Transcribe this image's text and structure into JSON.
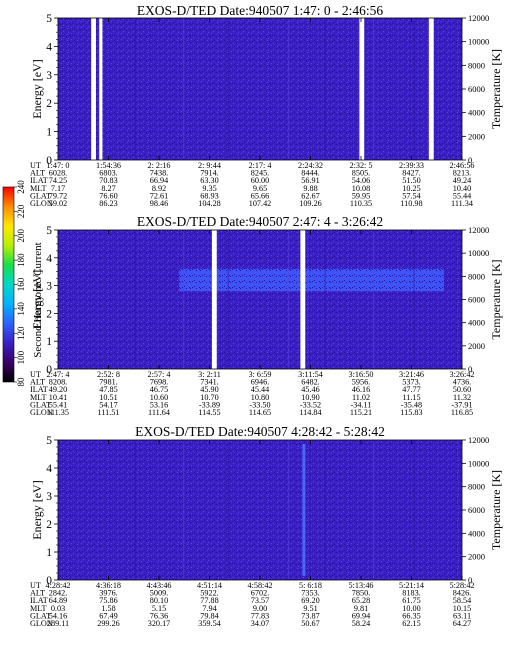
{
  "colors": {
    "background": "#3a1fc6",
    "speckle_dark": "#2a0f96",
    "speckle_light": "#5a45e2",
    "band": "#3b5bff",
    "gap": "#ffffff"
  },
  "colorbar": {
    "label": "Second Harmonic Current",
    "ticks": [
      "80",
      "100",
      "120",
      "140",
      "160",
      "180",
      "200",
      "220",
      "240"
    ],
    "stops": [
      "#000000",
      "#3c0066",
      "#3a1fc6",
      "#2b62ff",
      "#00b2ff",
      "#00d8c8",
      "#18e048",
      "#b8f000",
      "#ffe600",
      "#ff8c00",
      "#ff0000"
    ]
  },
  "row_labels": [
    "UT",
    "ALT",
    "ILAT",
    "MLT",
    "GLAT",
    "GLON"
  ],
  "chart_data": [
    {
      "type": "heatmap",
      "title": "EXOS-D/TED   Date:940507   1:47: 0 - 2:46:56",
      "ylabel": "Energy [eV]",
      "y2label": "Temperature [K]",
      "ylim": [
        0,
        5
      ],
      "y2lim": [
        0,
        12000
      ],
      "yticks": [
        "0",
        "1",
        "2",
        "3",
        "4",
        "5"
      ],
      "y2ticks": [
        "0",
        "2000",
        "4000",
        "6000",
        "8000",
        "10000",
        "12000"
      ],
      "data_gaps_fraction": [
        [
          0.082,
          0.094
        ],
        [
          0.102,
          0.11
        ],
        [
          0.746,
          0.758
        ],
        [
          0.918,
          0.93
        ]
      ],
      "enhanced_band_ev": null,
      "columns": [
        [
          "1:47: 0",
          "6028.",
          "74.25",
          "7.17",
          "79.72",
          "59.02"
        ],
        [
          "1:54:36",
          "6803.",
          "70.83",
          "8.27",
          "76.60",
          "86.23"
        ],
        [
          "2: 2:16",
          "7438.",
          "66.94",
          "8.92",
          "72.61",
          "98.46"
        ],
        [
          "2: 9:44",
          "7914.",
          "63.30",
          "9.35",
          "68.93",
          "104.28"
        ],
        [
          "2:17: 4",
          "8245.",
          "60.00",
          "9.65",
          "65.66",
          "107.42"
        ],
        [
          "2:24:32",
          "8444.",
          "56.91",
          "9.88",
          "62.67",
          "109.26"
        ],
        [
          "2:32: 5",
          "8505.",
          "54.06",
          "10.08",
          "59.95",
          "110.35"
        ],
        [
          "2:39:33",
          "8427.",
          "51.50",
          "10.25",
          "57.54",
          "110.98"
        ],
        [
          "2:46:56",
          "8213.",
          "49.24",
          "10.40",
          "55.44",
          "111.34"
        ]
      ]
    },
    {
      "type": "heatmap",
      "title": "EXOS-D/TED   Date:940507   2:47: 4 - 3:26:42",
      "ylabel": "Energy [eV]",
      "y2label": "Temperature [K]",
      "ylim": [
        0,
        5
      ],
      "y2lim": [
        0,
        12000
      ],
      "yticks": [
        "0",
        "1",
        "2",
        "3",
        "4",
        "5"
      ],
      "y2ticks": [
        "0",
        "2000",
        "4000",
        "6000",
        "8000",
        "10000",
        "12000"
      ],
      "data_gaps_fraction": [
        [
          0.381,
          0.393
        ],
        [
          0.6,
          0.612
        ]
      ],
      "enhanced_band_ev": [
        2.8,
        3.6
      ],
      "columns": [
        [
          "2:47: 4",
          "8208.",
          "49.20",
          "10.41",
          "55.41",
          "111.35"
        ],
        [
          "2:52: 8",
          "7981.",
          "47.85",
          "10.51",
          "54.17",
          "111.51"
        ],
        [
          "2:57: 4",
          "7698.",
          "46.75",
          "10.60",
          "53.16",
          "111.64"
        ],
        [
          "3: 2:11",
          "7341.",
          "45.90",
          "10.70",
          "-33.89",
          "114.55"
        ],
        [
          "3: 6:59",
          "6946.",
          "45.44",
          "10.80",
          "-33.50",
          "114.65"
        ],
        [
          "3:11:54",
          "6482.",
          "45.46",
          "10.90",
          "-33.52",
          "114.84"
        ],
        [
          "3:16:50",
          "5956.",
          "46.16",
          "11.02",
          "-34.11",
          "115.21"
        ],
        [
          "3:21:46",
          "5373.",
          "47.77",
          "11.15",
          "-35.48",
          "115.83"
        ],
        [
          "3:26:42",
          "4736.",
          "50.60",
          "11.32",
          "-37.91",
          "116.85"
        ]
      ]
    },
    {
      "type": "heatmap",
      "title": "EXOS-D/TED   Date:940507   4:28:42 - 5:28:42",
      "ylabel": "Energy [eV]",
      "y2label": "Temperature [K]",
      "ylim": [
        0,
        5
      ],
      "y2lim": [
        0,
        12000
      ],
      "yticks": [
        "0",
        "1",
        "2",
        "3",
        "4",
        "5"
      ],
      "y2ticks": [
        "0",
        "2000",
        "4000",
        "6000",
        "8000",
        "10000",
        "12000"
      ],
      "data_gaps_fraction": [],
      "enhanced_band_ev": null,
      "columns": [
        [
          "4:28:42",
          "2842.",
          "64.89",
          "0.03",
          "54.16",
          "289.11"
        ],
        [
          "4:36:18",
          "3976.",
          "75.86",
          "1.58",
          "67.49",
          "299.26"
        ],
        [
          "4:43:46",
          "5009.",
          "80.10",
          "5.15",
          "76.36",
          "320.17"
        ],
        [
          "4:51:14",
          "5922.",
          "77.88",
          "7.94",
          "79.84",
          "359.54"
        ],
        [
          "4:58:42",
          "6702.",
          "73.57",
          "9.00",
          "77.83",
          "34.07"
        ],
        [
          "5: 6:18",
          "7353.",
          "69.20",
          "9.51",
          "73.87",
          "50.67"
        ],
        [
          "5:13:46",
          "7850.",
          "65.28",
          "9.81",
          "69.94",
          "58.24"
        ],
        [
          "5:21:14",
          "8183.",
          "61.75",
          "10.00",
          "66.35",
          "62.15"
        ],
        [
          "5:28:42",
          "8426.",
          "58.54",
          "10.15",
          "63.11",
          "64.27"
        ]
      ]
    }
  ]
}
